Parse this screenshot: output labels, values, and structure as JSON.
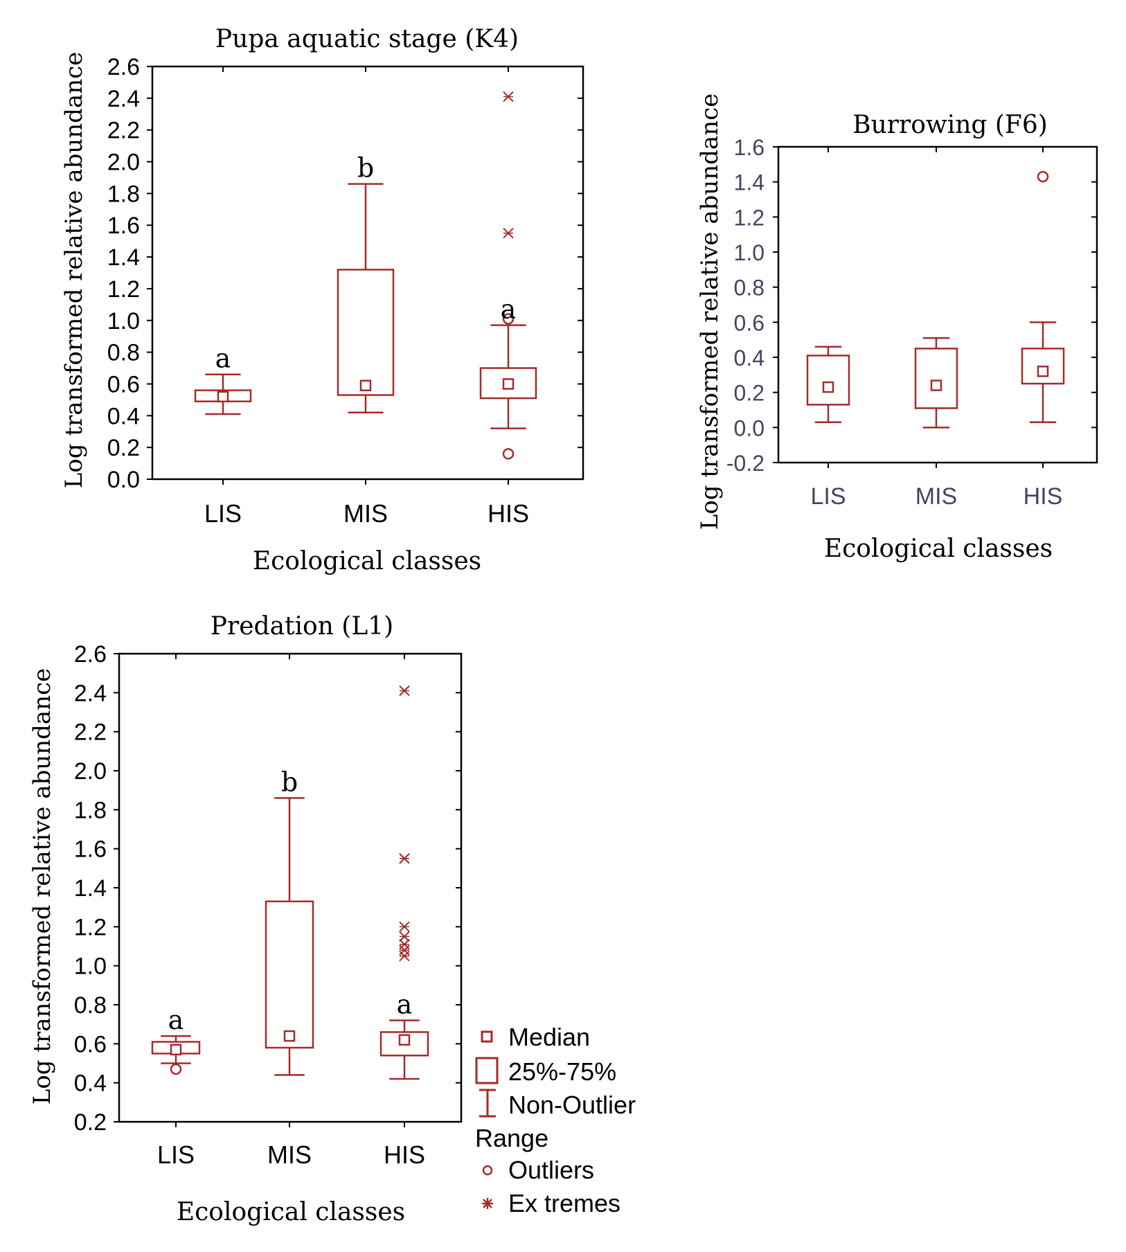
{
  "colors": {
    "series": "#a52a2a",
    "axis": "#000000",
    "burrow_tick": "#4a4060"
  },
  "chart_data": [
    {
      "id": "k4",
      "type": "boxplot",
      "title": "Pupa aquatic stage (K4)",
      "xlabel": "Ecological classes",
      "ylabel": "Log transformed relative abundance",
      "ylim": [
        0.0,
        2.6
      ],
      "yticks": [
        "0.0",
        "0.2",
        "0.4",
        "0.6",
        "0.8",
        "1.0",
        "1.2",
        "1.4",
        "1.6",
        "1.8",
        "2.0",
        "2.2",
        "2.4",
        "2.6"
      ],
      "categories": [
        "LIS",
        "MIS",
        "HIS"
      ],
      "boxes": [
        {
          "category": "LIS",
          "median": 0.52,
          "q1": 0.49,
          "q3": 0.56,
          "whisker_low": 0.41,
          "whisker_high": 0.66,
          "letter": "a",
          "outliers": [],
          "extremes": []
        },
        {
          "category": "MIS",
          "median": 0.59,
          "q1": 0.53,
          "q3": 1.32,
          "whisker_low": 0.42,
          "whisker_high": 1.86,
          "letter": "b",
          "outliers": [],
          "extremes": []
        },
        {
          "category": "HIS",
          "median": 0.6,
          "q1": 0.51,
          "q3": 0.7,
          "whisker_low": 0.32,
          "whisker_high": 0.97,
          "letter": "a",
          "outliers": [
            0.16,
            1.01
          ],
          "extremes": [
            1.55,
            2.41
          ]
        }
      ]
    },
    {
      "id": "f6",
      "type": "boxplot",
      "title": "Burrowing (F6)",
      "xlabel": "Ecological classes",
      "ylabel": "Log transformed relative abundance",
      "ylim": [
        -0.2,
        1.6
      ],
      "yticks": [
        "-0.2",
        "0.0",
        "0.2",
        "0.4",
        "0.6",
        "0.8",
        "1.0",
        "1.2",
        "1.4",
        "1.6"
      ],
      "categories": [
        "LIS",
        "MIS",
        "HIS"
      ],
      "boxes": [
        {
          "category": "LIS",
          "median": 0.23,
          "q1": 0.13,
          "q3": 0.41,
          "whisker_low": 0.03,
          "whisker_high": 0.46,
          "letter": "",
          "outliers": [],
          "extremes": []
        },
        {
          "category": "MIS",
          "median": 0.24,
          "q1": 0.11,
          "q3": 0.45,
          "whisker_low": 0.0,
          "whisker_high": 0.51,
          "letter": "",
          "outliers": [],
          "extremes": []
        },
        {
          "category": "HIS",
          "median": 0.32,
          "q1": 0.25,
          "q3": 0.45,
          "whisker_low": 0.03,
          "whisker_high": 0.6,
          "letter": "",
          "outliers": [
            1.43
          ],
          "extremes": []
        }
      ]
    },
    {
      "id": "l1",
      "type": "boxplot",
      "title": "Predation (L1)",
      "xlabel": "Ecological classes",
      "ylabel": "Log transformed relative abundance",
      "ylim": [
        0.2,
        2.6
      ],
      "yticks": [
        "0.2",
        "0.4",
        "0.6",
        "0.8",
        "1.0",
        "1.2",
        "1.4",
        "1.6",
        "1.8",
        "2.0",
        "2.2",
        "2.4",
        "2.6"
      ],
      "categories": [
        "LIS",
        "MIS",
        "HIS"
      ],
      "boxes": [
        {
          "category": "LIS",
          "median": 0.57,
          "q1": 0.55,
          "q3": 0.61,
          "whisker_low": 0.5,
          "whisker_high": 0.64,
          "letter": "a",
          "outliers": [
            0.47
          ],
          "extremes": []
        },
        {
          "category": "MIS",
          "median": 0.64,
          "q1": 0.58,
          "q3": 1.33,
          "whisker_low": 0.44,
          "whisker_high": 1.86,
          "letter": "b",
          "outliers": [],
          "extremes": []
        },
        {
          "category": "HIS",
          "median": 0.62,
          "q1": 0.54,
          "q3": 0.66,
          "whisker_low": 0.42,
          "whisker_high": 0.72,
          "letter": "a",
          "outliers": [],
          "extremes": [
            1.05,
            1.08,
            1.11,
            1.15,
            1.2,
            1.55,
            2.41
          ]
        }
      ]
    }
  ],
  "legend": {
    "items": [
      "Median",
      "25%-75%",
      "Non-Outlier",
      "Range",
      "Outliers",
      "Ex tremes"
    ]
  }
}
